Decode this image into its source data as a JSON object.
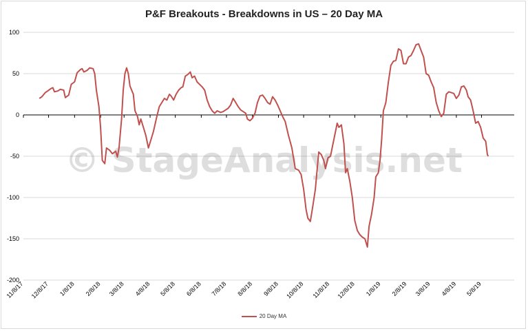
{
  "chart_data": {
    "type": "line",
    "title": "P&F Breakouts - Breakdowns in US – 20 Day MA",
    "watermark": "© StageAnalysis.net",
    "ylim": [
      -200,
      100
    ],
    "yticks": [
      100,
      50,
      0,
      -50,
      -100,
      -150,
      -200
    ],
    "xlabels": [
      "11/8/17",
      "12/8/17",
      "1/8/18",
      "2/8/18",
      "3/8/18",
      "4/8/18",
      "5/8/18",
      "6/8/18",
      "7/8/18",
      "8/8/18",
      "9/8/18",
      "10/8/18",
      "11/8/18",
      "12/8/18",
      "1/8/19",
      "2/8/19",
      "3/8/19",
      "4/8/19",
      "5/8/19"
    ],
    "grid": true,
    "legend_position": "bottom",
    "series": [
      {
        "name": "20 Day MA",
        "color": "#c0504d",
        "points": [
          [
            "2017-11-27",
            20
          ],
          [
            "2017-11-30",
            22
          ],
          [
            "2017-12-04",
            27
          ],
          [
            "2017-12-07",
            29
          ],
          [
            "2017-12-11",
            32
          ],
          [
            "2017-12-13",
            33
          ],
          [
            "2017-12-15",
            28
          ],
          [
            "2017-12-19",
            29
          ],
          [
            "2017-12-22",
            31
          ],
          [
            "2017-12-26",
            30
          ],
          [
            "2017-12-28",
            21
          ],
          [
            "2018-01-01",
            24
          ],
          [
            "2018-01-04",
            37
          ],
          [
            "2018-01-08",
            40
          ],
          [
            "2018-01-11",
            51
          ],
          [
            "2018-01-15",
            55
          ],
          [
            "2018-01-17",
            56
          ],
          [
            "2018-01-19",
            52
          ],
          [
            "2018-01-23",
            54
          ],
          [
            "2018-01-26",
            57
          ],
          [
            "2018-01-30",
            56
          ],
          [
            "2018-02-01",
            50
          ],
          [
            "2018-02-03",
            30
          ],
          [
            "2018-02-06",
            10
          ],
          [
            "2018-02-08",
            -15
          ],
          [
            "2018-02-10",
            -55
          ],
          [
            "2018-02-13",
            -59
          ],
          [
            "2018-02-15",
            -40
          ],
          [
            "2018-02-19",
            -43
          ],
          [
            "2018-02-22",
            -47
          ],
          [
            "2018-02-26",
            -44
          ],
          [
            "2018-02-28",
            -51
          ],
          [
            "2018-03-02",
            -40
          ],
          [
            "2018-03-05",
            -5
          ],
          [
            "2018-03-07",
            30
          ],
          [
            "2018-03-09",
            50
          ],
          [
            "2018-03-11",
            57
          ],
          [
            "2018-03-13",
            50
          ],
          [
            "2018-03-15",
            35
          ],
          [
            "2018-03-19",
            25
          ],
          [
            "2018-03-21",
            5
          ],
          [
            "2018-03-24",
            -2
          ],
          [
            "2018-03-26",
            -12
          ],
          [
            "2018-03-28",
            -5
          ],
          [
            "2018-03-31",
            -15
          ],
          [
            "2018-04-03",
            -25
          ],
          [
            "2018-04-06",
            -40
          ],
          [
            "2018-04-09",
            -30
          ],
          [
            "2018-04-12",
            -20
          ],
          [
            "2018-04-16",
            -2
          ],
          [
            "2018-04-19",
            10
          ],
          [
            "2018-04-22",
            15
          ],
          [
            "2018-04-25",
            20
          ],
          [
            "2018-04-28",
            18
          ],
          [
            "2018-05-01",
            25
          ],
          [
            "2018-05-03",
            23
          ],
          [
            "2018-05-06",
            18
          ],
          [
            "2018-05-09",
            25
          ],
          [
            "2018-05-12",
            30
          ],
          [
            "2018-05-15",
            33
          ],
          [
            "2018-05-17",
            34
          ],
          [
            "2018-05-20",
            47
          ],
          [
            "2018-05-23",
            49
          ],
          [
            "2018-05-26",
            52
          ],
          [
            "2018-05-28",
            45
          ],
          [
            "2018-05-31",
            47
          ],
          [
            "2018-06-03",
            40
          ],
          [
            "2018-06-06",
            37
          ],
          [
            "2018-06-09",
            34
          ],
          [
            "2018-06-12",
            30
          ],
          [
            "2018-06-15",
            18
          ],
          [
            "2018-06-18",
            10
          ],
          [
            "2018-06-21",
            5
          ],
          [
            "2018-06-24",
            2
          ],
          [
            "2018-06-27",
            5
          ],
          [
            "2018-07-01",
            3
          ],
          [
            "2018-07-04",
            4
          ],
          [
            "2018-07-07",
            6
          ],
          [
            "2018-07-10",
            8
          ],
          [
            "2018-07-13",
            12
          ],
          [
            "2018-07-16",
            20
          ],
          [
            "2018-07-19",
            15
          ],
          [
            "2018-07-22",
            10
          ],
          [
            "2018-07-25",
            6
          ],
          [
            "2018-07-28",
            4
          ],
          [
            "2018-07-31",
            2
          ],
          [
            "2018-08-02",
            -5
          ],
          [
            "2018-08-05",
            -7
          ],
          [
            "2018-08-08",
            -4
          ],
          [
            "2018-08-11",
            2
          ],
          [
            "2018-08-14",
            15
          ],
          [
            "2018-08-17",
            23
          ],
          [
            "2018-08-20",
            24
          ],
          [
            "2018-08-23",
            20
          ],
          [
            "2018-08-26",
            15
          ],
          [
            "2018-08-29",
            13
          ],
          [
            "2018-09-01",
            22
          ],
          [
            "2018-09-04",
            18
          ],
          [
            "2018-09-07",
            12
          ],
          [
            "2018-09-10",
            5
          ],
          [
            "2018-09-13",
            -2
          ],
          [
            "2018-09-16",
            -8
          ],
          [
            "2018-09-20",
            -25
          ],
          [
            "2018-09-24",
            -40
          ],
          [
            "2018-09-28",
            -65
          ],
          [
            "2018-10-02",
            -67
          ],
          [
            "2018-10-05",
            -72
          ],
          [
            "2018-10-08",
            -90
          ],
          [
            "2018-10-11",
            -115
          ],
          [
            "2018-10-13",
            -125
          ],
          [
            "2018-10-16",
            -129
          ],
          [
            "2018-10-19",
            -110
          ],
          [
            "2018-10-22",
            -90
          ],
          [
            "2018-10-26",
            -45
          ],
          [
            "2018-10-29",
            -48
          ],
          [
            "2018-11-01",
            -55
          ],
          [
            "2018-11-03",
            -65
          ],
          [
            "2018-11-06",
            -52
          ],
          [
            "2018-11-09",
            -50
          ],
          [
            "2018-11-12",
            -35
          ],
          [
            "2018-11-15",
            -20
          ],
          [
            "2018-11-17",
            -10
          ],
          [
            "2018-11-19",
            -15
          ],
          [
            "2018-11-22",
            -12
          ],
          [
            "2018-11-25",
            -35
          ],
          [
            "2018-11-27",
            -70
          ],
          [
            "2018-11-29",
            -65
          ],
          [
            "2018-12-02",
            -80
          ],
          [
            "2018-12-05",
            -100
          ],
          [
            "2018-12-08",
            -128
          ],
          [
            "2018-12-11",
            -140
          ],
          [
            "2018-12-14",
            -145
          ],
          [
            "2018-12-17",
            -148
          ],
          [
            "2018-12-20",
            -150
          ],
          [
            "2018-12-23",
            -160
          ],
          [
            "2018-12-25",
            -135
          ],
          [
            "2018-12-28",
            -120
          ],
          [
            "2018-12-31",
            -100
          ],
          [
            "2019-01-02",
            -75
          ],
          [
            "2019-01-05",
            -70
          ],
          [
            "2019-01-07",
            -55
          ],
          [
            "2019-01-09",
            -30
          ],
          [
            "2019-01-11",
            5
          ],
          [
            "2019-01-14",
            15
          ],
          [
            "2019-01-17",
            40
          ],
          [
            "2019-01-20",
            60
          ],
          [
            "2019-01-23",
            65
          ],
          [
            "2019-01-26",
            66
          ],
          [
            "2019-01-29",
            80
          ],
          [
            "2019-02-01",
            78
          ],
          [
            "2019-02-04",
            62
          ],
          [
            "2019-02-07",
            62
          ],
          [
            "2019-02-10",
            70
          ],
          [
            "2019-02-13",
            72
          ],
          [
            "2019-02-16",
            78
          ],
          [
            "2019-02-19",
            85
          ],
          [
            "2019-02-22",
            86
          ],
          [
            "2019-02-25",
            78
          ],
          [
            "2019-02-28",
            70
          ],
          [
            "2019-03-03",
            50
          ],
          [
            "2019-03-06",
            48
          ],
          [
            "2019-03-09",
            40
          ],
          [
            "2019-03-12",
            33
          ],
          [
            "2019-03-15",
            15
          ],
          [
            "2019-03-18",
            5
          ],
          [
            "2019-03-21",
            -2
          ],
          [
            "2019-03-24",
            2
          ],
          [
            "2019-03-27",
            25
          ],
          [
            "2019-03-30",
            28
          ],
          [
            "2019-04-02",
            27
          ],
          [
            "2019-04-05",
            26
          ],
          [
            "2019-04-08",
            20
          ],
          [
            "2019-04-11",
            24
          ],
          [
            "2019-04-14",
            34
          ],
          [
            "2019-04-17",
            35
          ],
          [
            "2019-04-20",
            30
          ],
          [
            "2019-04-22",
            22
          ],
          [
            "2019-04-25",
            18
          ],
          [
            "2019-04-28",
            5
          ],
          [
            "2019-05-01",
            -10
          ],
          [
            "2019-05-04",
            -8
          ],
          [
            "2019-05-07",
            -15
          ],
          [
            "2019-05-10",
            -28
          ],
          [
            "2019-05-13",
            -32
          ],
          [
            "2019-05-15",
            -48
          ],
          [
            "2019-05-16",
            -50
          ]
        ]
      }
    ]
  }
}
